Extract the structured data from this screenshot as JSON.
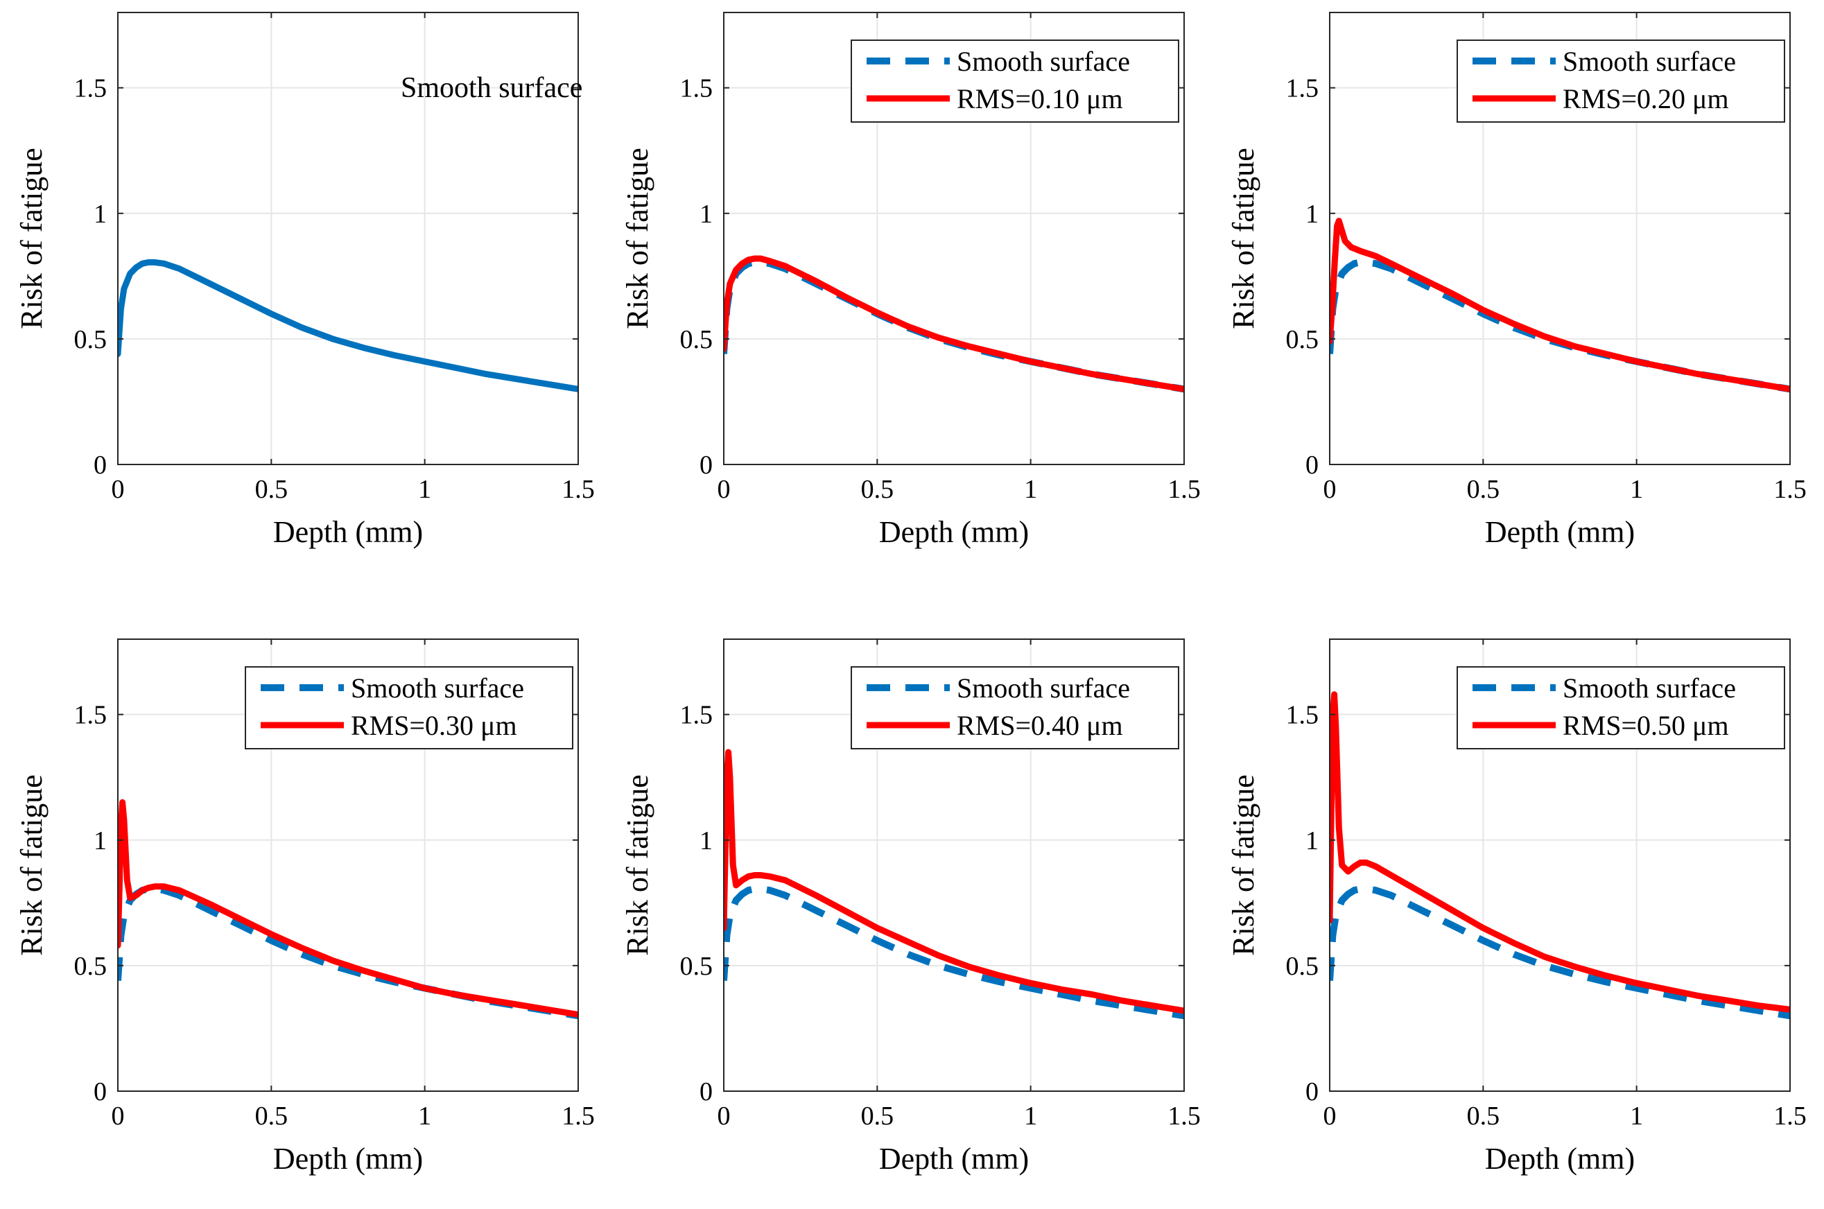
{
  "chart_data": [
    {
      "type": "line",
      "xlabel": "Depth (mm)",
      "ylabel": "Risk of fatigue",
      "xlim": [
        0,
        1.5
      ],
      "ylim": [
        0,
        1.8
      ],
      "xticks": [
        0,
        0.5,
        1,
        1.5
      ],
      "xtick_labels": [
        "0",
        "0.5",
        "1",
        "1.5"
      ],
      "yticks": [
        0,
        0.5,
        1,
        1.5
      ],
      "ytick_labels": [
        "0",
        "0.5",
        "1",
        "1.5"
      ],
      "grid": true,
      "annotation": "Smooth surface",
      "legend": null,
      "series": [
        {
          "name": "Smooth surface",
          "style": "solid",
          "color": "#0072BD",
          "x": [
            0,
            0.01,
            0.02,
            0.04,
            0.06,
            0.08,
            0.1,
            0.12,
            0.15,
            0.2,
            0.3,
            0.4,
            0.5,
            0.6,
            0.7,
            0.8,
            0.9,
            1.0,
            1.1,
            1.2,
            1.3,
            1.4,
            1.5
          ],
          "y": [
            0.44,
            0.62,
            0.7,
            0.76,
            0.785,
            0.8,
            0.805,
            0.805,
            0.8,
            0.78,
            0.72,
            0.66,
            0.6,
            0.545,
            0.5,
            0.465,
            0.435,
            0.41,
            0.385,
            0.36,
            0.34,
            0.32,
            0.3
          ]
        }
      ]
    },
    {
      "type": "line",
      "xlabel": "Depth (mm)",
      "ylabel": "Risk of fatigue",
      "xlim": [
        0,
        1.5
      ],
      "ylim": [
        0,
        1.8
      ],
      "xticks": [
        0,
        0.5,
        1,
        1.5
      ],
      "xtick_labels": [
        "0",
        "0.5",
        "1",
        "1.5"
      ],
      "yticks": [
        0,
        0.5,
        1,
        1.5
      ],
      "ytick_labels": [
        "0",
        "0.5",
        "1",
        "1.5"
      ],
      "grid": true,
      "legend": "top-right",
      "series": [
        {
          "name": "Smooth surface",
          "style": "dashed",
          "color": "#0072BD",
          "x": [
            0,
            0.01,
            0.02,
            0.04,
            0.06,
            0.08,
            0.1,
            0.12,
            0.15,
            0.2,
            0.3,
            0.4,
            0.5,
            0.6,
            0.7,
            0.8,
            0.9,
            1.0,
            1.1,
            1.2,
            1.3,
            1.4,
            1.5
          ],
          "y": [
            0.44,
            0.62,
            0.7,
            0.76,
            0.785,
            0.8,
            0.805,
            0.805,
            0.8,
            0.78,
            0.72,
            0.66,
            0.6,
            0.545,
            0.5,
            0.465,
            0.435,
            0.41,
            0.385,
            0.36,
            0.34,
            0.32,
            0.3
          ]
        },
        {
          "name": "RMS=0.10 μm",
          "style": "solid",
          "color": "#FF0000",
          "x": [
            0,
            0.01,
            0.02,
            0.04,
            0.06,
            0.08,
            0.1,
            0.12,
            0.15,
            0.2,
            0.3,
            0.4,
            0.5,
            0.6,
            0.7,
            0.8,
            0.9,
            1.0,
            1.1,
            1.2,
            1.3,
            1.4,
            1.5
          ],
          "y": [
            0.46,
            0.64,
            0.72,
            0.775,
            0.8,
            0.815,
            0.82,
            0.82,
            0.81,
            0.79,
            0.73,
            0.665,
            0.605,
            0.55,
            0.505,
            0.47,
            0.44,
            0.41,
            0.385,
            0.36,
            0.34,
            0.32,
            0.3
          ]
        }
      ]
    },
    {
      "type": "line",
      "xlabel": "Depth (mm)",
      "ylabel": "Risk of fatigue",
      "xlim": [
        0,
        1.5
      ],
      "ylim": [
        0,
        1.8
      ],
      "xticks": [
        0,
        0.5,
        1,
        1.5
      ],
      "xtick_labels": [
        "0",
        "0.5",
        "1",
        "1.5"
      ],
      "yticks": [
        0,
        0.5,
        1,
        1.5
      ],
      "ytick_labels": [
        "0",
        "0.5",
        "1",
        "1.5"
      ],
      "grid": true,
      "legend": "top-right",
      "series": [
        {
          "name": "Smooth surface",
          "style": "dashed",
          "color": "#0072BD",
          "x": [
            0,
            0.01,
            0.02,
            0.04,
            0.06,
            0.08,
            0.1,
            0.12,
            0.15,
            0.2,
            0.3,
            0.4,
            0.5,
            0.6,
            0.7,
            0.8,
            0.9,
            1.0,
            1.1,
            1.2,
            1.3,
            1.4,
            1.5
          ],
          "y": [
            0.44,
            0.62,
            0.7,
            0.76,
            0.785,
            0.8,
            0.805,
            0.805,
            0.8,
            0.78,
            0.72,
            0.66,
            0.6,
            0.545,
            0.5,
            0.465,
            0.435,
            0.41,
            0.385,
            0.36,
            0.34,
            0.32,
            0.3
          ]
        },
        {
          "name": "RMS=0.20 μm",
          "style": "solid",
          "color": "#FF0000",
          "x": [
            0,
            0.008,
            0.016,
            0.024,
            0.03,
            0.04,
            0.05,
            0.07,
            0.1,
            0.15,
            0.2,
            0.3,
            0.4,
            0.5,
            0.6,
            0.7,
            0.8,
            0.9,
            1.0,
            1.1,
            1.2,
            1.3,
            1.4,
            1.5
          ],
          "y": [
            0.49,
            0.62,
            0.8,
            0.95,
            0.97,
            0.93,
            0.89,
            0.865,
            0.85,
            0.83,
            0.8,
            0.74,
            0.68,
            0.615,
            0.56,
            0.51,
            0.47,
            0.44,
            0.41,
            0.385,
            0.36,
            0.34,
            0.32,
            0.3
          ]
        }
      ]
    },
    {
      "type": "line",
      "xlabel": "Depth (mm)",
      "ylabel": "Risk of fatigue",
      "xlim": [
        0,
        1.5
      ],
      "ylim": [
        0,
        1.8
      ],
      "xticks": [
        0,
        0.5,
        1,
        1.5
      ],
      "xtick_labels": [
        "0",
        "0.5",
        "1",
        "1.5"
      ],
      "yticks": [
        0,
        0.5,
        1,
        1.5
      ],
      "ytick_labels": [
        "0",
        "0.5",
        "1",
        "1.5"
      ],
      "grid": true,
      "legend": "top-right",
      "series": [
        {
          "name": "Smooth surface",
          "style": "dashed",
          "color": "#0072BD",
          "x": [
            0,
            0.01,
            0.02,
            0.04,
            0.06,
            0.08,
            0.1,
            0.12,
            0.15,
            0.2,
            0.3,
            0.4,
            0.5,
            0.6,
            0.7,
            0.8,
            0.9,
            1.0,
            1.1,
            1.2,
            1.3,
            1.4,
            1.5
          ],
          "y": [
            0.44,
            0.62,
            0.7,
            0.76,
            0.785,
            0.8,
            0.805,
            0.805,
            0.8,
            0.78,
            0.72,
            0.66,
            0.6,
            0.545,
            0.5,
            0.465,
            0.435,
            0.41,
            0.385,
            0.36,
            0.34,
            0.32,
            0.3
          ]
        },
        {
          "name": "RMS=0.30 μm",
          "style": "solid",
          "color": "#FF0000",
          "x": [
            0,
            0.005,
            0.01,
            0.015,
            0.02,
            0.03,
            0.04,
            0.06,
            0.08,
            0.1,
            0.12,
            0.15,
            0.2,
            0.3,
            0.4,
            0.5,
            0.6,
            0.7,
            0.8,
            0.9,
            1.0,
            1.1,
            1.2,
            1.3,
            1.4,
            1.5
          ],
          "y": [
            0.58,
            0.8,
            1.05,
            1.15,
            1.08,
            0.84,
            0.77,
            0.78,
            0.8,
            0.81,
            0.815,
            0.815,
            0.8,
            0.745,
            0.685,
            0.625,
            0.57,
            0.52,
            0.48,
            0.445,
            0.41,
            0.385,
            0.365,
            0.345,
            0.325,
            0.305
          ]
        }
      ]
    },
    {
      "type": "line",
      "xlabel": "Depth (mm)",
      "ylabel": "Risk of fatigue",
      "xlim": [
        0,
        1.5
      ],
      "ylim": [
        0,
        1.8
      ],
      "xticks": [
        0,
        0.5,
        1,
        1.5
      ],
      "xtick_labels": [
        "0",
        "0.5",
        "1",
        "1.5"
      ],
      "yticks": [
        0,
        0.5,
        1,
        1.5
      ],
      "ytick_labels": [
        "0",
        "0.5",
        "1",
        "1.5"
      ],
      "grid": true,
      "legend": "top-right",
      "series": [
        {
          "name": "Smooth surface",
          "style": "dashed",
          "color": "#0072BD",
          "x": [
            0,
            0.01,
            0.02,
            0.04,
            0.06,
            0.08,
            0.1,
            0.12,
            0.15,
            0.2,
            0.3,
            0.4,
            0.5,
            0.6,
            0.7,
            0.8,
            0.9,
            1.0,
            1.1,
            1.2,
            1.3,
            1.4,
            1.5
          ],
          "y": [
            0.44,
            0.62,
            0.7,
            0.76,
            0.785,
            0.8,
            0.805,
            0.805,
            0.8,
            0.78,
            0.72,
            0.66,
            0.6,
            0.545,
            0.5,
            0.465,
            0.435,
            0.41,
            0.385,
            0.36,
            0.34,
            0.32,
            0.3
          ]
        },
        {
          "name": "RMS=0.40 μm",
          "style": "solid",
          "color": "#FF0000",
          "x": [
            0,
            0.005,
            0.01,
            0.015,
            0.02,
            0.03,
            0.04,
            0.06,
            0.08,
            0.1,
            0.12,
            0.15,
            0.2,
            0.3,
            0.4,
            0.5,
            0.6,
            0.7,
            0.8,
            0.9,
            1.0,
            1.1,
            1.2,
            1.3,
            1.4,
            1.5
          ],
          "y": [
            0.65,
            0.95,
            1.25,
            1.35,
            1.25,
            0.9,
            0.82,
            0.84,
            0.855,
            0.86,
            0.86,
            0.855,
            0.84,
            0.78,
            0.715,
            0.65,
            0.595,
            0.54,
            0.495,
            0.46,
            0.43,
            0.405,
            0.385,
            0.36,
            0.34,
            0.32
          ]
        }
      ]
    },
    {
      "type": "line",
      "xlabel": "Depth (mm)",
      "ylabel": "Risk of fatigue",
      "xlim": [
        0,
        1.5
      ],
      "ylim": [
        0,
        1.8
      ],
      "xticks": [
        0,
        0.5,
        1,
        1.5
      ],
      "xtick_labels": [
        "0",
        "0.5",
        "1",
        "1.5"
      ],
      "yticks": [
        0,
        0.5,
        1,
        1.5
      ],
      "ytick_labels": [
        "0",
        "0.5",
        "1",
        "1.5"
      ],
      "grid": true,
      "legend": "top-right",
      "series": [
        {
          "name": "Smooth surface",
          "style": "dashed",
          "color": "#0072BD",
          "x": [
            0,
            0.01,
            0.02,
            0.04,
            0.06,
            0.08,
            0.1,
            0.12,
            0.15,
            0.2,
            0.3,
            0.4,
            0.5,
            0.6,
            0.7,
            0.8,
            0.9,
            1.0,
            1.1,
            1.2,
            1.3,
            1.4,
            1.5
          ],
          "y": [
            0.44,
            0.62,
            0.7,
            0.76,
            0.785,
            0.8,
            0.805,
            0.805,
            0.8,
            0.78,
            0.72,
            0.66,
            0.6,
            0.545,
            0.5,
            0.465,
            0.435,
            0.41,
            0.385,
            0.36,
            0.34,
            0.32,
            0.3
          ]
        },
        {
          "name": "RMS=0.50 μm",
          "style": "solid",
          "color": "#FF0000",
          "x": [
            0,
            0.005,
            0.01,
            0.015,
            0.02,
            0.03,
            0.04,
            0.06,
            0.08,
            0.1,
            0.12,
            0.15,
            0.2,
            0.3,
            0.4,
            0.5,
            0.6,
            0.7,
            0.8,
            0.9,
            1.0,
            1.1,
            1.2,
            1.3,
            1.4,
            1.5
          ],
          "y": [
            0.68,
            1.1,
            1.5,
            1.58,
            1.45,
            1.05,
            0.9,
            0.875,
            0.895,
            0.91,
            0.91,
            0.895,
            0.86,
            0.79,
            0.72,
            0.65,
            0.59,
            0.535,
            0.495,
            0.46,
            0.43,
            0.405,
            0.38,
            0.36,
            0.34,
            0.325
          ]
        }
      ]
    }
  ]
}
